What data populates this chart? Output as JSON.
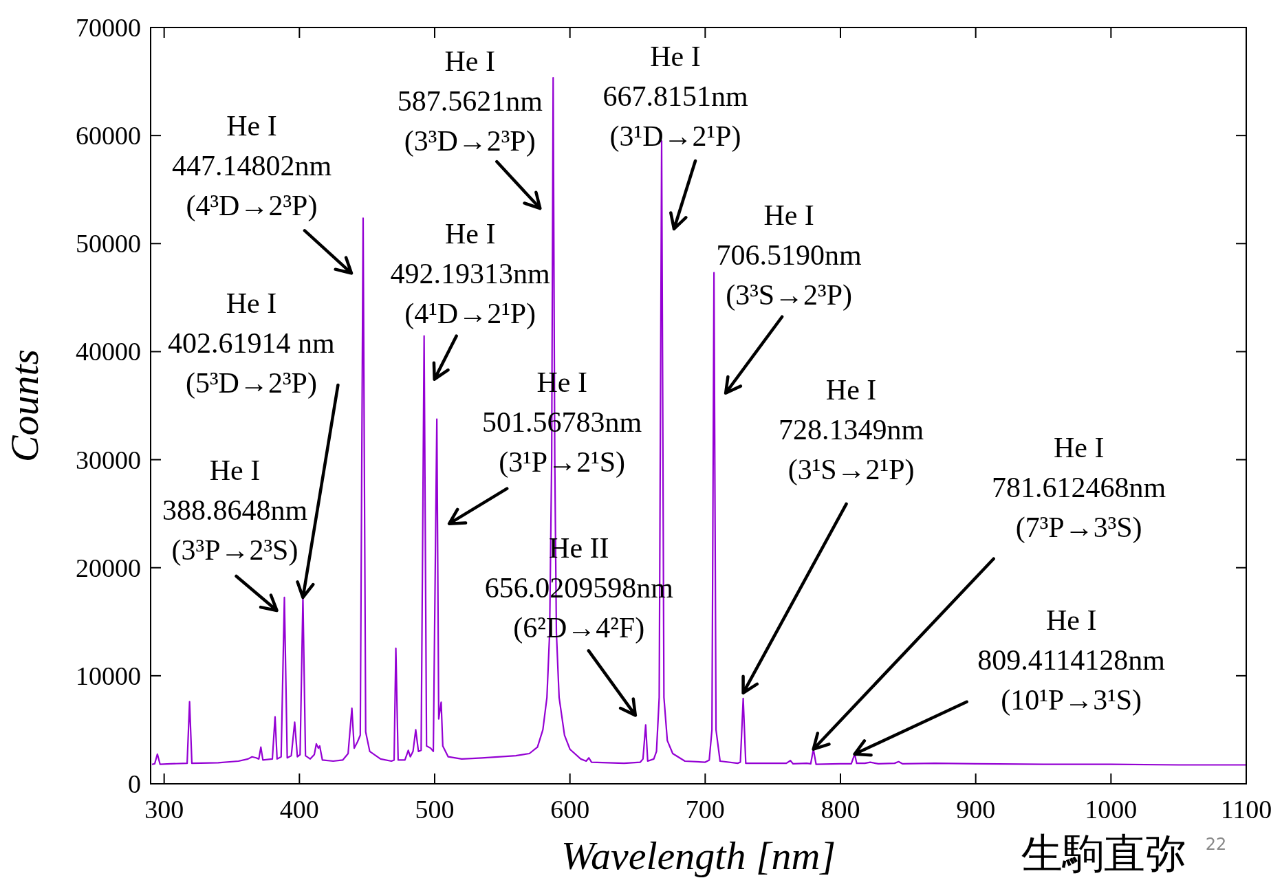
{
  "chart_data": {
    "type": "line",
    "xlabel": "Wavelength [nm]",
    "ylabel": "Counts",
    "xlim": [
      290,
      1100
    ],
    "xticks": [
      300,
      400,
      500,
      600,
      700,
      800,
      900,
      1000,
      1100
    ],
    "ylim": [
      0,
      70000
    ],
    "yticks": [
      0,
      10000,
      20000,
      30000,
      40000,
      50000,
      60000,
      70000
    ],
    "grid": false,
    "series": [
      {
        "color": "#9400d3",
        "x": [
          291,
          293,
          295,
          297,
          305,
          317,
          318.8,
          320.5,
          340,
          355,
          362,
          365,
          368,
          370,
          371.5,
          373,
          380,
          382,
          383.5,
          386.5,
          388.9,
          391,
          394,
          396.5,
          398.5,
          400.5,
          402.6,
          404.5,
          408,
          411,
          412.5,
          414,
          415,
          417,
          425,
          432,
          436,
          438.8,
          440.5,
          443,
          445,
          447.1,
          449,
          452,
          460,
          468,
          470,
          471.3,
          473,
          478,
          480.5,
          482,
          484,
          486,
          488,
          490,
          492.2,
          494,
          497,
          499,
          501.6,
          503,
          504.8,
          506,
          510,
          520,
          535,
          560,
          570,
          576,
          580,
          583,
          585,
          586.5,
          587.6,
          588.8,
          590,
          592,
          596,
          600,
          608,
          612,
          614,
          616,
          640,
          652,
          654,
          656,
          657.5,
          662,
          664,
          666,
          667.8,
          669.5,
          672,
          676,
          685,
          700,
          703,
          705,
          706.5,
          708,
          711,
          724,
          726,
          728.1,
          730,
          745,
          760,
          763,
          765,
          775,
          778,
          780,
          782,
          800,
          808,
          810.5,
          812,
          818,
          822,
          828,
          840,
          843,
          846,
          870,
          900,
          950,
          1000,
          1050,
          1100
        ],
        "values": [
          1800,
          1850,
          2750,
          1800,
          1850,
          1900,
          7600,
          1900,
          1950,
          2100,
          2300,
          2500,
          2400,
          2300,
          3400,
          2200,
          2300,
          6200,
          2300,
          2500,
          17250,
          2400,
          2600,
          5700,
          2500,
          2700,
          17250,
          2600,
          2300,
          2700,
          3700,
          3300,
          3500,
          2200,
          2100,
          2200,
          2800,
          7000,
          3300,
          3900,
          4500,
          52350,
          4800,
          3000,
          2300,
          2100,
          2200,
          12550,
          2200,
          2200,
          3100,
          2500,
          3000,
          5000,
          3000,
          3100,
          41450,
          3500,
          3300,
          3000,
          33750,
          6000,
          7550,
          3500,
          2500,
          2300,
          2400,
          2600,
          2800,
          3400,
          5000,
          8000,
          14000,
          30000,
          65350,
          30000,
          14000,
          8000,
          4500,
          3200,
          2300,
          2100,
          2400,
          2000,
          1900,
          2000,
          2300,
          5450,
          2100,
          2300,
          3000,
          8000,
          59500,
          8000,
          4000,
          2800,
          2100,
          2000,
          2200,
          5000,
          47300,
          5000,
          2100,
          1900,
          2000,
          7900,
          1900,
          1900,
          1900,
          2150,
          1850,
          1900,
          1850,
          3200,
          1800,
          1850,
          1850,
          2750,
          1900,
          1900,
          2000,
          1850,
          1900,
          2050,
          1850,
          1900,
          1850,
          1800,
          1800,
          1750,
          1750
        ]
      }
    ],
    "annotations": [
      {
        "text": "He I\n388.8648nm\n(3³P→2³S)",
        "x": 388.9,
        "y": 17250
      },
      {
        "text": "He I\n402.61914 nm\n(5³D→2³P)",
        "x": 402.6,
        "y": 17250
      },
      {
        "text": "He I\n447.14802nm\n(4³D→2³P)",
        "x": 447.1,
        "y": 52350
      },
      {
        "text": "He I\n492.19313nm\n(4¹D→2¹P)",
        "x": 492.2,
        "y": 41450
      },
      {
        "text": "He I\n587.5621nm\n(3³D→2³P)",
        "x": 587.6,
        "y": 65350
      },
      {
        "text": "He I\n501.56783nm\n(3¹P→2¹S)",
        "x": 501.6,
        "y": 33750
      },
      {
        "text": "He II\n656.0209598nm\n(6²D→4²F)",
        "x": 656,
        "y": 5450
      },
      {
        "text": "He I\n667.8151nm\n(3¹D→2¹P)",
        "x": 667.8,
        "y": 59500
      },
      {
        "text": "He I\n706.5190nm\n(3³S→2³P)",
        "x": 706.5,
        "y": 47300
      },
      {
        "text": "He I\n728.1349nm\n(3¹S→2¹P)",
        "x": 728.1,
        "y": 7900
      },
      {
        "text": "He I\n781.612468nm\n(7³P→3³S)",
        "x": 780,
        "y": 3200
      },
      {
        "text": "He I\n809.4114128nm\n(10¹P→3¹S)",
        "x": 810.5,
        "y": 2750
      },
      "生駒直弥",
      "22"
    ]
  }
}
